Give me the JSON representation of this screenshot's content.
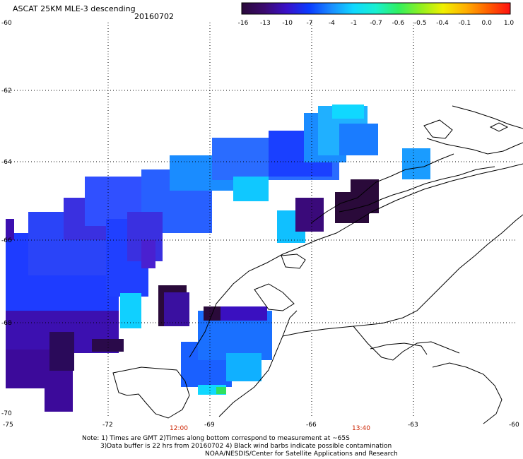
{
  "title": "ASCAT 25KM MLE-3 descending",
  "date": "20160702",
  "colorbar": {
    "labels": [
      "-16",
      "-13",
      "-10",
      "-7",
      "-4",
      "-1",
      "-0.7",
      "-0.6",
      "-0.5",
      "-0.4",
      "-0.1",
      "0.0",
      "1.0"
    ],
    "colors": [
      "#2a0a3a",
      "#3b0a6e",
      "#3a10c8",
      "#0a3aff",
      "#1a8cff",
      "#10d8ff",
      "#18f0d0",
      "#30f060",
      "#90f020",
      "#f0f000",
      "#ffb000",
      "#ff6000",
      "#ff1010"
    ]
  },
  "axes": {
    "lon_labels": [
      "-75",
      "-72",
      "-69",
      "-66",
      "-63",
      "-60"
    ],
    "lat_labels": [
      "-60",
      "-62",
      "-64",
      "-66",
      "-68",
      "-70"
    ],
    "time_labels": [
      "12:00",
      "13:40"
    ]
  },
  "notes": {
    "line1": "Note: 1) Times are GMT 2)Times along bottom correspond to measurement at ~65S",
    "line2": "3)Data buffer is 22 hrs from 20160702 4) Black wind barbs indicate possible contamination",
    "line3": "NOAA/NESDIS/Center for Satellite Applications and Research"
  }
}
